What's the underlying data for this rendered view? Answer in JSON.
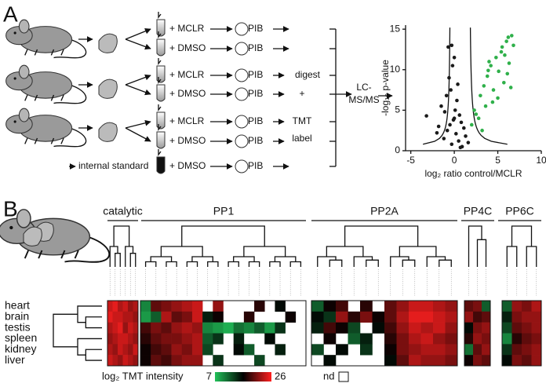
{
  "panel_a": {
    "label": "A",
    "rows": [
      {
        "treatment": "+ MCLR",
        "bead": "PIB"
      },
      {
        "treatment": "+ DMSO",
        "bead": "PIB"
      },
      {
        "treatment": "+ MCLR",
        "bead": "PIB"
      },
      {
        "treatment": "+ DMSO",
        "bead": "PIB"
      },
      {
        "treatment": "+ MCLR",
        "bead": "PIB"
      },
      {
        "treatment": "+ DMSO",
        "bead": "PIB"
      },
      {
        "treatment": "+ DMSO",
        "bead": "PIB"
      }
    ],
    "internal_standard": "internal standard",
    "steps": [
      "digest",
      "+",
      "TMT",
      "label"
    ],
    "ms": [
      "LC-",
      "MS/MS"
    ]
  },
  "chart_data": {
    "type": "scatter",
    "xlabel": "log₂ ratio control/MCLR",
    "ylabel": "-log₁₀ p-value",
    "xlim": [
      -5.6,
      10.0
    ],
    "ylim": [
      0,
      15.5
    ],
    "xticks": [
      -5,
      0,
      5,
      10
    ],
    "yticks": [
      0,
      5,
      10,
      15
    ],
    "series": [
      {
        "color": "#1a1a1a",
        "x": [
          -1.2,
          -0.8,
          -0.5,
          -0.3,
          0,
          0.2,
          0.5,
          0.8,
          1.1,
          -1.5,
          -0.9,
          -0.4,
          0.1,
          0.6,
          1.3,
          -1.8,
          -0.6,
          0.3,
          0.9,
          -1.1,
          -0.2,
          0.4,
          -2.0,
          1.6,
          -0.7,
          0.0,
          -0.3,
          -3.2,
          -0.1,
          0.7
        ],
        "values": [
          1.5,
          2.5,
          3.2,
          0.8,
          4.0,
          2.1,
          1.2,
          3.5,
          2.8,
          5.5,
          6.8,
          7.5,
          5.0,
          4.4,
          1.8,
          3.0,
          9.0,
          6.2,
          0.5,
          4.8,
          10.5,
          8.2,
          2.2,
          1.0,
          12.8,
          11.5,
          13.0,
          4.3,
          3.8,
          0.4
        ]
      },
      {
        "color": "#2fb04a",
        "x": [
          2.0,
          2.5,
          3.0,
          3.4,
          3.8,
          4.2,
          4.5,
          4.8,
          5.1,
          5.4,
          5.7,
          6.0,
          6.3,
          6.6,
          2.8,
          3.6,
          4.0,
          5.0,
          5.5,
          6.1,
          6.5,
          6.8,
          4.4,
          3.2,
          5.8,
          6.2,
          2.3,
          3.9
        ],
        "values": [
          3.2,
          4.5,
          6.8,
          8.0,
          9.2,
          10.5,
          7.5,
          11.5,
          9.8,
          12.2,
          8.4,
          13.5,
          10.8,
          14.2,
          4.0,
          5.5,
          11.0,
          6.5,
          12.8,
          9.5,
          7.8,
          13.0,
          6.0,
          2.5,
          11.8,
          14.0,
          5.0,
          9.9
        ]
      }
    ]
  },
  "panel_b": {
    "label": "B",
    "heatmap": {
      "rows": [
        "heart",
        "brain",
        "testis",
        "spleen",
        "kidney",
        "liver"
      ],
      "scale_label": "log₂ TMT intensity",
      "scale_min": 7,
      "scale_max": 26,
      "nd_label": "nd",
      "groups": [
        {
          "name": "catalytic",
          "values": [
            [
              24,
              25,
              23,
              24,
              22,
              23
            ],
            [
              25,
              24,
              24,
              23,
              23,
              22
            ],
            [
              23,
              24,
              25,
              22,
              24,
              23
            ],
            [
              22,
              23,
              24,
              24,
              23,
              22
            ],
            [
              23,
              22,
              24,
              23,
              22,
              24
            ],
            [
              24,
              23,
              22,
              24,
              23,
              22
            ]
          ]
        },
        {
          "name": "PP1",
          "values": [
            [
              10,
              20,
              21,
              22,
              23,
              24,
              null,
              22,
              null,
              null,
              null,
              18,
              null,
              16,
              null,
              null
            ],
            [
              9,
              12,
              23,
              20,
              21,
              24,
              15,
              17,
              null,
              null,
              18,
              null,
              null,
              null,
              17,
              null
            ],
            [
              19,
              21,
              20,
              22,
              23,
              22,
              10,
              9,
              8,
              11,
              10,
              12,
              9,
              14,
              null,
              null
            ],
            [
              18,
              20,
              21,
              21,
              22,
              23,
              12,
              14,
              null,
              15,
              null,
              null,
              16,
              null,
              null,
              null
            ],
            [
              17,
              19,
              20,
              22,
              21,
              23,
              13,
              null,
              null,
              16,
              12,
              null,
              null,
              15,
              null,
              null
            ],
            [
              17,
              20,
              19,
              21,
              22,
              22,
              null,
              14,
              null,
              null,
              null,
              13,
              null,
              null,
              null,
              null
            ]
          ]
        },
        {
          "name": "PP2A",
          "values": [
            [
              12,
              17,
              19,
              null,
              18,
              null,
              20,
              22,
              24,
              24,
              23,
              22
            ],
            [
              16,
              14,
              22,
              18,
              21,
              17,
              20,
              23,
              25,
              25,
              24,
              23
            ],
            [
              15,
              19,
              17,
              13,
              null,
              16,
              19,
              22,
              24,
              23,
              24,
              22
            ],
            [
              null,
              17,
              null,
              12,
              15,
              null,
              18,
              21,
              23,
              24,
              22,
              21
            ],
            [
              13,
              null,
              16,
              null,
              14,
              null,
              17,
              21,
              22,
              23,
              23,
              22
            ],
            [
              null,
              16,
              null,
              null,
              null,
              null,
              16,
              20,
              23,
              22,
              22,
              21
            ]
          ]
        },
        {
          "name": "PP4C",
          "values": [
            [
              20,
              21,
              12
            ],
            [
              22,
              19,
              20
            ],
            [
              16,
              21,
              22
            ],
            [
              18,
              22,
              21
            ],
            [
              11,
              20,
              22
            ],
            [
              17,
              21,
              20
            ]
          ]
        },
        {
          "name": "PP6C",
          "values": [
            [
              12,
              22,
              21,
              23
            ],
            [
              15,
              21,
              22,
              22
            ],
            [
              13,
              20,
              21,
              22
            ],
            [
              10,
              18,
              20,
              21
            ],
            [
              14,
              20,
              21,
              22
            ],
            [
              16,
              21,
              20,
              22
            ]
          ]
        }
      ]
    }
  }
}
